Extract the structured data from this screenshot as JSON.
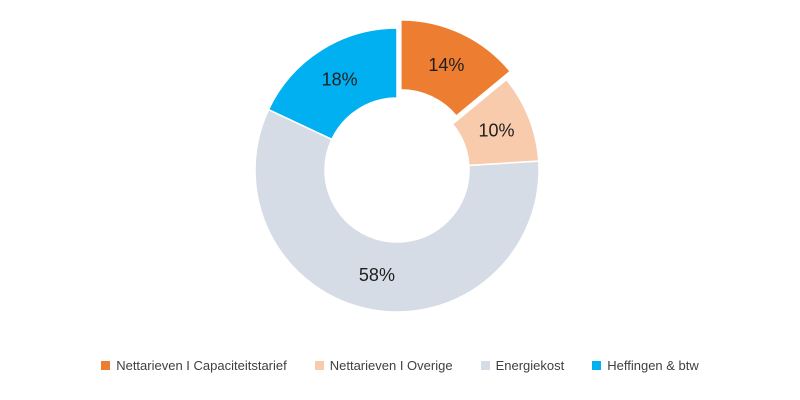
{
  "chart_data": {
    "type": "pie",
    "donut": true,
    "categories": [
      "Nettarieven I Capaciteitstarief",
      "Nettarieven I Overige",
      "Energiekost",
      "Heffingen & btw"
    ],
    "values": [
      14,
      10,
      58,
      18
    ],
    "data_labels": [
      "14%",
      "10%",
      "58%",
      "18%"
    ],
    "colors": [
      "#ED7D31",
      "#F8CBAD",
      "#D6DCE5",
      "#00B0F0"
    ],
    "exploded": [
      true,
      false,
      false,
      false
    ],
    "legend_position": "bottom"
  }
}
